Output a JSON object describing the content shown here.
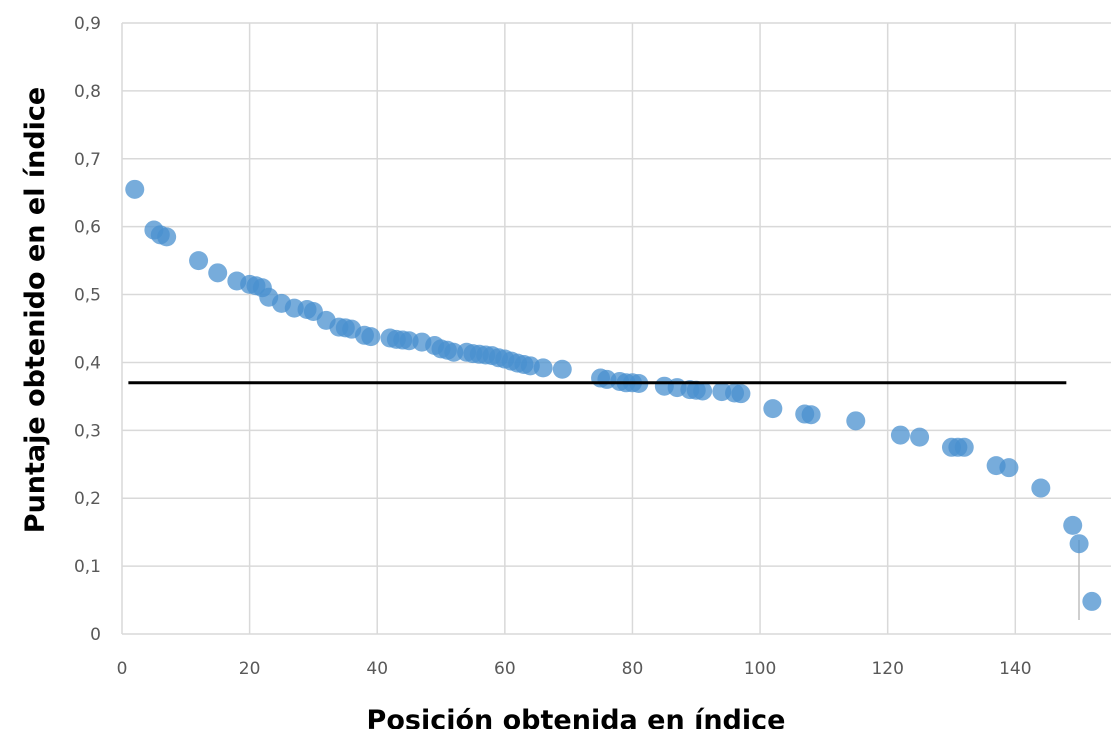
{
  "chart_data": {
    "type": "scatter",
    "title": "",
    "xlabel": "Posición obtenida en índice",
    "ylabel": "Puntaje obtenido en el índice",
    "xlim": [
      0,
      155
    ],
    "ylim": [
      0,
      0.9
    ],
    "x_ticks": [
      0,
      20,
      40,
      60,
      80,
      100,
      120,
      140
    ],
    "x_tick_labels": [
      "0",
      "20",
      "40",
      "60",
      "80",
      "100",
      "120",
      "140"
    ],
    "y_ticks": [
      0,
      0.1,
      0.2,
      0.3,
      0.4,
      0.5,
      0.6,
      0.7,
      0.8,
      0.9
    ],
    "y_tick_labels": [
      "0",
      "0,1",
      "0,2",
      "0,3",
      "0,4",
      "0,5",
      "0,6",
      "0,7",
      "0,8",
      "0,9"
    ],
    "grid": true,
    "point_color": "#4a90cf",
    "reference_line": {
      "y": 0.37,
      "x_start": 1,
      "x_end": 148,
      "color": "#000000"
    },
    "series": [
      {
        "points": [
          [
            2,
            0.655
          ],
          [
            5,
            0.595
          ],
          [
            6,
            0.588
          ],
          [
            7,
            0.585
          ],
          [
            12,
            0.55
          ],
          [
            15,
            0.532
          ],
          [
            18,
            0.52
          ],
          [
            20,
            0.515
          ],
          [
            21,
            0.513
          ],
          [
            22,
            0.51
          ],
          [
            23,
            0.496
          ],
          [
            25,
            0.487
          ],
          [
            27,
            0.48
          ],
          [
            29,
            0.478
          ],
          [
            30,
            0.475
          ],
          [
            32,
            0.462
          ],
          [
            34,
            0.452
          ],
          [
            35,
            0.451
          ],
          [
            36,
            0.449
          ],
          [
            38,
            0.44
          ],
          [
            39,
            0.438
          ],
          [
            42,
            0.436
          ],
          [
            43,
            0.434
          ],
          [
            44,
            0.433
          ],
          [
            45,
            0.432
          ],
          [
            47,
            0.43
          ],
          [
            49,
            0.425
          ],
          [
            50,
            0.42
          ],
          [
            51,
            0.418
          ],
          [
            52,
            0.415
          ],
          [
            54,
            0.415
          ],
          [
            55,
            0.413
          ],
          [
            56,
            0.412
          ],
          [
            57,
            0.411
          ],
          [
            58,
            0.41
          ],
          [
            59,
            0.407
          ],
          [
            60,
            0.405
          ],
          [
            61,
            0.402
          ],
          [
            62,
            0.399
          ],
          [
            63,
            0.397
          ],
          [
            64,
            0.395
          ],
          [
            66,
            0.392
          ],
          [
            69,
            0.39
          ],
          [
            75,
            0.377
          ],
          [
            76,
            0.375
          ],
          [
            78,
            0.372
          ],
          [
            79,
            0.37
          ],
          [
            80,
            0.37
          ],
          [
            81,
            0.369
          ],
          [
            85,
            0.365
          ],
          [
            87,
            0.363
          ],
          [
            89,
            0.36
          ],
          [
            90,
            0.359
          ],
          [
            91,
            0.358
          ],
          [
            94,
            0.357
          ],
          [
            96,
            0.355
          ],
          [
            97,
            0.354
          ],
          [
            102,
            0.332
          ],
          [
            107,
            0.324
          ],
          [
            108,
            0.323
          ],
          [
            115,
            0.314
          ],
          [
            122,
            0.293
          ],
          [
            125,
            0.29
          ],
          [
            130,
            0.275
          ],
          [
            131,
            0.275
          ],
          [
            132,
            0.275
          ],
          [
            137,
            0.248
          ],
          [
            139,
            0.245
          ],
          [
            144,
            0.215
          ],
          [
            149,
            0.16
          ],
          [
            150,
            0.133
          ],
          [
            152,
            0.048
          ]
        ]
      }
    ]
  }
}
